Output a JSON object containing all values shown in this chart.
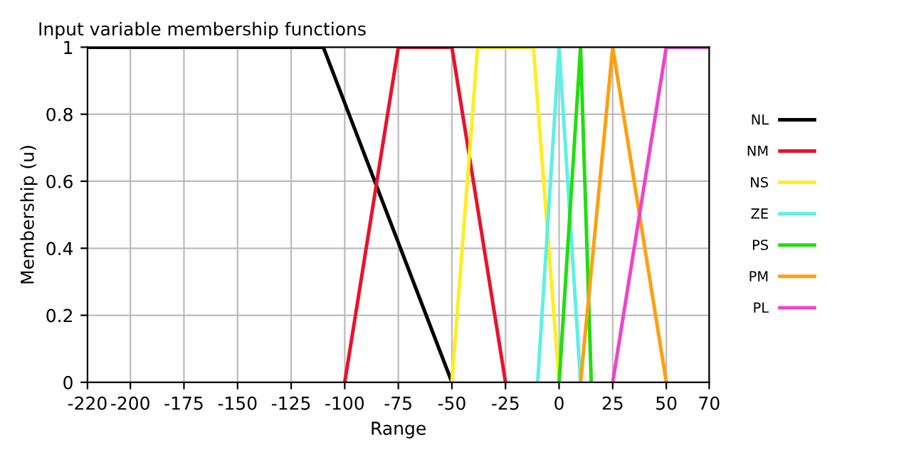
{
  "chart_data": {
    "type": "line",
    "title": "Input variable membership functions",
    "xlabel": "Range",
    "ylabel": "Membership (u)",
    "series": [
      {
        "name": "NL",
        "color": "#000000",
        "x": [
          -220,
          -110,
          -50
        ],
        "values": [
          1,
          1,
          0
        ]
      },
      {
        "name": "NM",
        "color": "#e8132b",
        "x": [
          -100,
          -75,
          -50,
          -25
        ],
        "values": [
          0,
          1,
          1,
          0
        ]
      },
      {
        "name": "NS",
        "color": "#ffee22",
        "x": [
          -50,
          -38,
          -12,
          0
        ],
        "values": [
          0,
          1,
          1,
          0
        ]
      },
      {
        "name": "ZE",
        "color": "#5ef0e6",
        "x": [
          -10,
          0,
          10
        ],
        "values": [
          0,
          1,
          0
        ]
      },
      {
        "name": "PS",
        "color": "#22dd11",
        "x": [
          0,
          10,
          15
        ],
        "values": [
          0,
          1,
          0
        ]
      },
      {
        "name": "PM",
        "color": "#ffa010",
        "x": [
          10,
          25,
          50
        ],
        "values": [
          0,
          1,
          0
        ]
      },
      {
        "name": "PL",
        "color": "#ee44cc",
        "x": [
          25,
          50,
          70
        ],
        "values": [
          0,
          1,
          1
        ]
      }
    ],
    "xlim": [
      -220,
      70
    ],
    "xticks": [
      -220,
      -200,
      -175,
      -150,
      -125,
      -100,
      -75,
      -50,
      -25,
      0,
      25,
      50,
      70
    ],
    "ylim": [
      0,
      1
    ],
    "yticks": [
      0,
      0.2,
      0.4,
      0.6,
      0.8,
      1
    ],
    "grid": true,
    "legend": "right",
    "marker": "none",
    "line_style": "solid"
  }
}
